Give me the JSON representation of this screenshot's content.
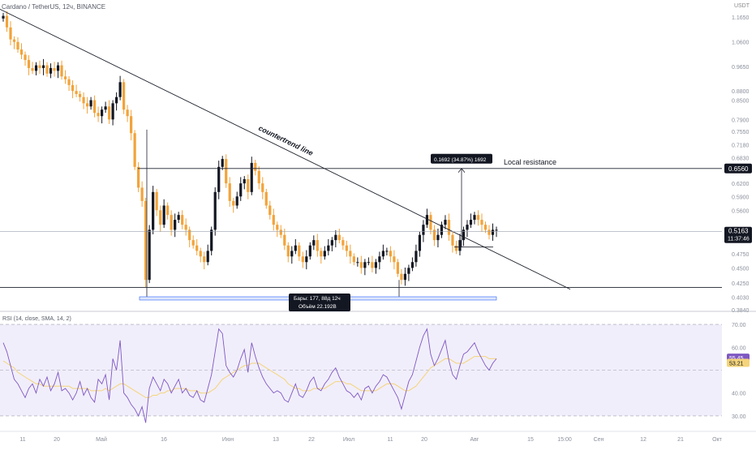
{
  "header": {
    "symbol": "Cardano / TetherUS, 12ч, BINANCE",
    "axis_currency": "USDT"
  },
  "chart_data": [
    {
      "type": "candlestick",
      "title": "Cardano / TetherUS, 12ч, BINANCE",
      "ylabel": "USDT",
      "y_scale": "log",
      "ylim": [
        0.384,
        1.205
      ],
      "y_ticks": [
        "1.1650",
        "1.0600",
        "0.9650",
        "0.8800",
        "0.8500",
        "0.7900",
        "0.7550",
        "0.7180",
        "0.6830",
        "0.6200",
        "0.5900",
        "0.5600",
        "0.5150",
        "0.4750",
        "0.4500",
        "0.4250",
        "0.4030",
        "0.3840"
      ],
      "x_ticks": [
        "11",
        "20",
        "Май",
        "16",
        "Июн",
        "13",
        "22",
        "Июл",
        "11",
        "20",
        "Авг",
        "15",
        "15:00",
        "Сен",
        "12",
        "21",
        "Окт"
      ],
      "close_series": [
        1.17,
        1.12,
        1.07,
        1.06,
        1.03,
        1.01,
        0.99,
        0.96,
        0.95,
        0.97,
        0.96,
        0.97,
        0.94,
        0.96,
        0.95,
        0.97,
        0.93,
        0.92,
        0.9,
        0.88,
        0.87,
        0.86,
        0.84,
        0.83,
        0.85,
        0.81,
        0.8,
        0.82,
        0.83,
        0.79,
        0.84,
        0.86,
        0.91,
        0.82,
        0.8,
        0.75,
        0.66,
        0.61,
        0.58,
        0.43,
        0.52,
        0.6,
        0.56,
        0.53,
        0.57,
        0.55,
        0.52,
        0.54,
        0.55,
        0.53,
        0.52,
        0.5,
        0.49,
        0.48,
        0.47,
        0.46,
        0.48,
        0.52,
        0.6,
        0.66,
        0.68,
        0.62,
        0.58,
        0.57,
        0.59,
        0.62,
        0.63,
        0.6,
        0.67,
        0.65,
        0.62,
        0.6,
        0.57,
        0.55,
        0.53,
        0.52,
        0.51,
        0.49,
        0.47,
        0.48,
        0.49,
        0.47,
        0.46,
        0.47,
        0.49,
        0.5,
        0.48,
        0.47,
        0.48,
        0.49,
        0.5,
        0.51,
        0.5,
        0.49,
        0.48,
        0.47,
        0.46,
        0.46,
        0.45,
        0.46,
        0.46,
        0.45,
        0.46,
        0.47,
        0.48,
        0.48,
        0.47,
        0.46,
        0.44,
        0.43,
        0.44,
        0.45,
        0.46,
        0.48,
        0.51,
        0.53,
        0.55,
        0.52,
        0.5,
        0.51,
        0.53,
        0.54,
        0.51,
        0.49,
        0.48,
        0.5,
        0.52,
        0.53,
        0.54,
        0.55,
        0.54,
        0.53,
        0.52,
        0.51,
        0.52,
        0.52
      ],
      "annotations": {
        "trendline_label": "countertrend line",
        "resistance_label": "Local resistance",
        "resistance_level": "0.6560",
        "current_price": "0.5163",
        "countdown": "11:37:46",
        "measure_label": "0.1692 (34.87%) 1692",
        "range_label_1": "Бары: 177, 88д 12ч",
        "range_label_2": "Объём 22.192B"
      }
    },
    {
      "type": "line",
      "title": "RSI (14, close, SMA, 14, 2)",
      "ylim": [
        25,
        75
      ],
      "y_ticks": [
        "70.00",
        "60.00",
        "40.00",
        "30.00"
      ],
      "bands": [
        30,
        50,
        70
      ],
      "rsi_value": "55.45",
      "sma_value": "53.21",
      "series": [
        {
          "name": "RSI",
          "values": [
            62,
            58,
            52,
            46,
            44,
            41,
            38,
            42,
            44,
            40,
            46,
            43,
            47,
            41,
            44,
            49,
            41,
            42,
            40,
            37,
            40,
            45,
            39,
            42,
            38,
            36,
            46,
            44,
            48,
            37,
            55,
            50,
            63,
            40,
            38,
            35,
            33,
            30,
            34,
            27,
            42,
            47,
            44,
            41,
            46,
            44,
            40,
            43,
            46,
            40,
            42,
            39,
            38,
            41,
            37,
            36,
            42,
            48,
            58,
            68,
            66,
            52,
            49,
            47,
            50,
            55,
            59,
            49,
            62,
            56,
            51,
            47,
            44,
            42,
            40,
            41,
            40,
            37,
            36,
            40,
            44,
            39,
            38,
            41,
            45,
            47,
            42,
            41,
            44,
            46,
            49,
            51,
            47,
            44,
            41,
            40,
            38,
            40,
            37,
            42,
            43,
            40,
            43,
            45,
            48,
            47,
            44,
            41,
            38,
            33,
            39,
            45,
            48,
            54,
            60,
            65,
            68,
            57,
            52,
            55,
            59,
            63,
            54,
            48,
            46,
            52,
            57,
            58,
            60,
            62,
            58,
            55,
            52,
            50,
            53,
            55
          ]
        },
        {
          "name": "SMA",
          "values": [
            54,
            53,
            52,
            51,
            49,
            48,
            47,
            46,
            45,
            44,
            44,
            43,
            43,
            43,
            43,
            43,
            43,
            43,
            43,
            42,
            42,
            42,
            42,
            42,
            41,
            41,
            41,
            41,
            42,
            41,
            42,
            43,
            44,
            44,
            43,
            42,
            41,
            40,
            39,
            38,
            38,
            39,
            39,
            40,
            40,
            41,
            41,
            42,
            42,
            42,
            42,
            41,
            41,
            41,
            40,
            40,
            40,
            41,
            42,
            44,
            46,
            47,
            48,
            49,
            50,
            51,
            52,
            52,
            53,
            53,
            53,
            52,
            51,
            50,
            49,
            48,
            47,
            46,
            44,
            43,
            42,
            42,
            41,
            41,
            41,
            42,
            42,
            42,
            42,
            43,
            44,
            45,
            45,
            45,
            44,
            44,
            43,
            42,
            41,
            41,
            41,
            41,
            41,
            42,
            43,
            44,
            44,
            44,
            43,
            42,
            41,
            41,
            42,
            43,
            45,
            47,
            49,
            51,
            52,
            53,
            54,
            55,
            55,
            54,
            53,
            53,
            53,
            54,
            55,
            56,
            56,
            56,
            56,
            55,
            55,
            55
          ]
        }
      ]
    }
  ]
}
